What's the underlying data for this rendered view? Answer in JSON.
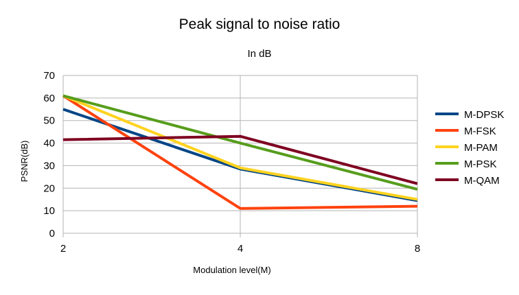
{
  "chart_data": {
    "type": "line",
    "title": "Peak signal to noise ratio",
    "subtitle": "In dB",
    "xlabel": "Modulation level(M)",
    "ylabel": "PSNR(dB)",
    "categories": [
      "2",
      "4",
      "8"
    ],
    "ylim": [
      0,
      70
    ],
    "yticks": [
      0,
      10,
      20,
      30,
      40,
      50,
      60,
      70
    ],
    "grid": true,
    "legend_position": "right",
    "series": [
      {
        "name": "M-DPSK",
        "color": "#004586",
        "values": [
          55,
          28.5,
          14.5
        ]
      },
      {
        "name": "M-FSK",
        "color": "#ff420e",
        "values": [
          61,
          11,
          12
        ]
      },
      {
        "name": "M-PAM",
        "color": "#ffd320",
        "values": [
          61,
          29,
          15
        ]
      },
      {
        "name": "M-PSK",
        "color": "#579d1c",
        "values": [
          61,
          40,
          19.5
        ]
      },
      {
        "name": "M-QAM",
        "color": "#7e0021",
        "values": [
          41.5,
          43,
          22
        ]
      }
    ]
  }
}
